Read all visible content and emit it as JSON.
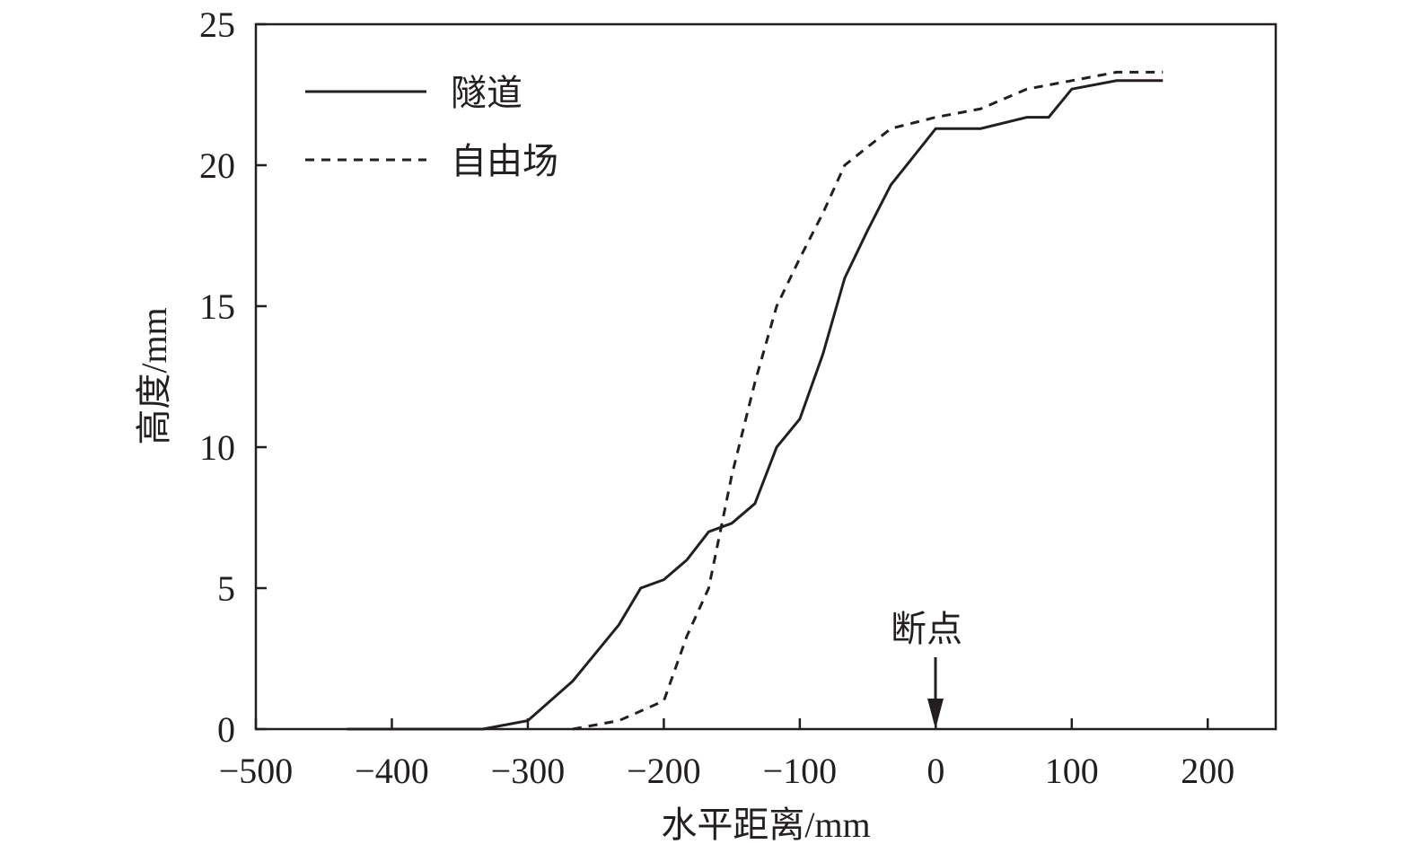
{
  "chart_data": {
    "type": "line",
    "xlabel": "水平距离/mm",
    "ylabel": "高度/mm",
    "xlim": [
      -500,
      250
    ],
    "ylim": [
      0,
      25
    ],
    "xticks": [
      -500,
      -400,
      -300,
      -200,
      -100,
      0,
      100,
      200
    ],
    "xtick_labels": [
      "−500",
      "−400",
      "−300",
      "−200",
      "−100",
      "0",
      "100",
      "200"
    ],
    "yticks": [
      0,
      5,
      10,
      15,
      20,
      25
    ],
    "ytick_labels": [
      "0",
      "5",
      "10",
      "15",
      "20",
      "25"
    ],
    "grid": false,
    "legend_position": "top-left",
    "series": [
      {
        "name": "隧道",
        "style": "solid",
        "color": "#231f20",
        "x": [
          -433,
          -333,
          -300,
          -267,
          -233,
          -217,
          -200,
          -183,
          -167,
          -150,
          -133,
          -117,
          -100,
          -83,
          -67,
          -50,
          -33,
          0,
          33,
          67,
          83,
          100,
          133,
          167
        ],
        "y": [
          0,
          0,
          0.3,
          1.7,
          3.7,
          5.0,
          5.3,
          6.0,
          7.0,
          7.3,
          8.0,
          10.0,
          11.0,
          13.3,
          16.0,
          17.7,
          19.3,
          21.3,
          21.3,
          21.7,
          21.7,
          22.7,
          23.0,
          23.0
        ]
      },
      {
        "name": "自由场",
        "style": "dashed",
        "color": "#231f20",
        "x": [
          -267,
          -233,
          -200,
          -183,
          -167,
          -150,
          -133,
          -117,
          -100,
          -83,
          -67,
          -33,
          0,
          33,
          67,
          100,
          133,
          167
        ],
        "y": [
          0,
          0.3,
          1.0,
          3.3,
          5.0,
          9.0,
          12.3,
          15.0,
          16.7,
          18.3,
          20.0,
          21.3,
          21.7,
          22.0,
          22.7,
          23.0,
          23.3,
          23.3
        ]
      }
    ],
    "annotations": [
      {
        "text": "断点",
        "x": 0,
        "y": 0,
        "arrow": "down"
      }
    ]
  }
}
